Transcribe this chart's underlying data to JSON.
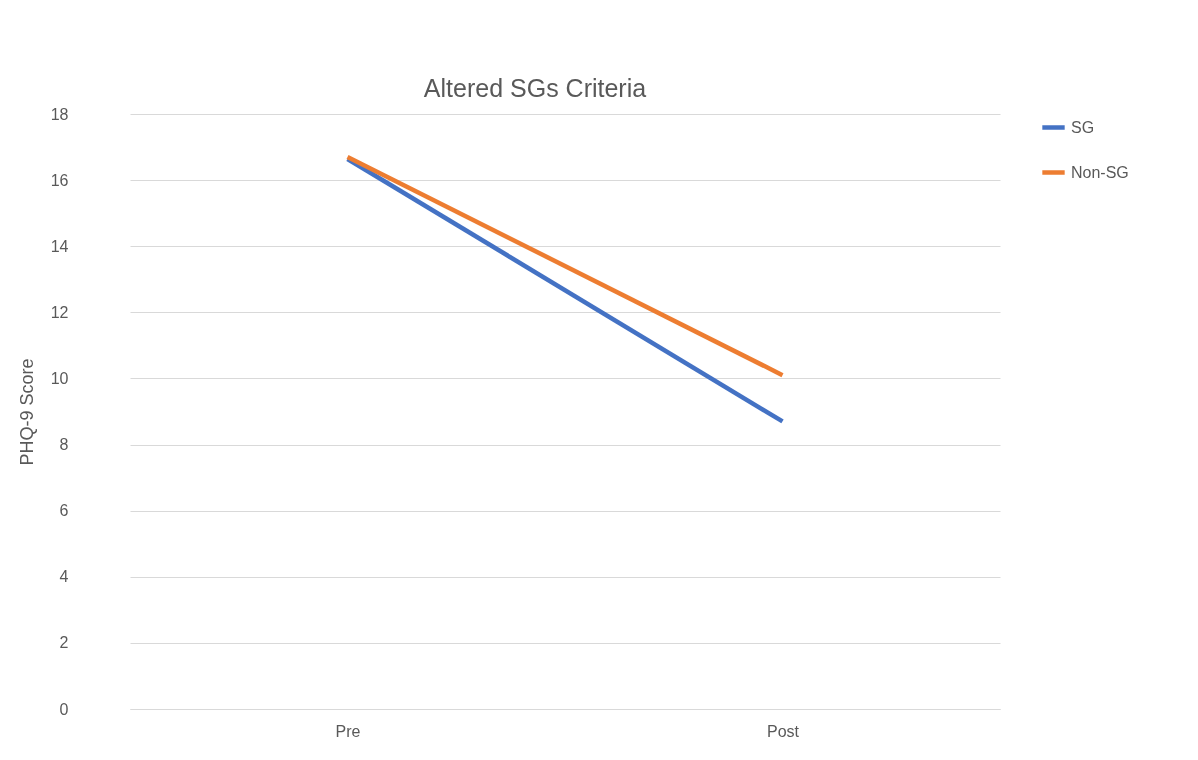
{
  "chart_data": {
    "type": "line",
    "title": "Altered SGs Criteria",
    "ylabel": "PHQ-9 Score",
    "categories": [
      "Pre",
      "Post"
    ],
    "series": [
      {
        "name": "SG",
        "color": "#4472c4",
        "values": [
          16.64,
          8.7
        ]
      },
      {
        "name": "Non-SG",
        "color": "#ed7d31",
        "values": [
          16.7,
          10.1
        ]
      }
    ],
    "ylim": [
      0,
      18
    ],
    "yticks": [
      0,
      2,
      4,
      6,
      8,
      10,
      12,
      14,
      16,
      18
    ],
    "grid": "y",
    "legend": "right"
  }
}
